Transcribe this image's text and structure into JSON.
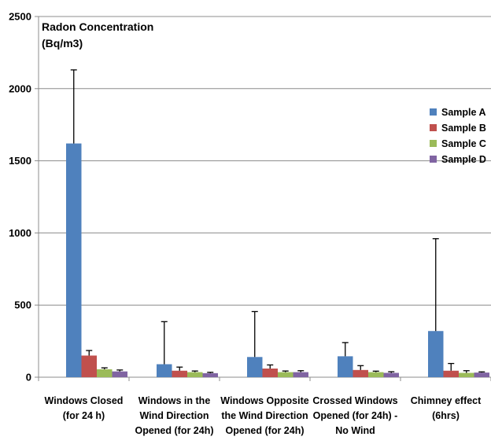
{
  "chart_data": {
    "type": "bar",
    "ylabel": [
      "Radon Concentration",
      "(Bq/m3)"
    ],
    "ylim": [
      0,
      2500
    ],
    "yticks": [
      0,
      500,
      1000,
      1500,
      2000,
      2500
    ],
    "grid": true,
    "legend_position": "right",
    "categories": [
      [
        "Windows Closed",
        "(for 24 h)"
      ],
      [
        "Windows in the",
        "Wind Direction",
        "Opened (for 24h)"
      ],
      [
        "Windows Opposite",
        "the Wind Direction",
        "Opened (for 24h)"
      ],
      [
        "Crossed Windows",
        "Opened (for 24h)  -",
        "No Wind"
      ],
      [
        "Chimney effect",
        "(6hrs)"
      ]
    ],
    "series": [
      {
        "name": "Sample A",
        "color": "#4F81BD",
        "values": [
          1620,
          90,
          140,
          145,
          320
        ],
        "errors": [
          510,
          295,
          315,
          95,
          640
        ]
      },
      {
        "name": "Sample B",
        "color": "#C0504D",
        "values": [
          150,
          45,
          60,
          50,
          45
        ],
        "errors": [
          35,
          25,
          25,
          30,
          50
        ]
      },
      {
        "name": "Sample C",
        "color": "#9BBB59",
        "values": [
          55,
          35,
          35,
          35,
          30
        ],
        "errors": [
          10,
          8,
          8,
          7,
          15
        ]
      },
      {
        "name": "Sample D",
        "color": "#8064A2",
        "values": [
          40,
          28,
          35,
          30,
          32
        ],
        "errors": [
          10,
          6,
          10,
          8,
          5
        ]
      }
    ]
  }
}
